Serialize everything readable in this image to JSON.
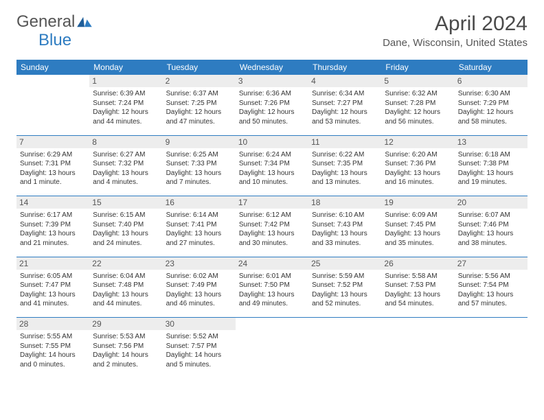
{
  "logo": {
    "word1": "General",
    "word2": "Blue"
  },
  "title": "April 2024",
  "location": "Dane, Wisconsin, United States",
  "colors": {
    "accent": "#2e7cc1",
    "daynum_bg": "#ededed",
    "text": "#333333",
    "title_text": "#4a4a4a",
    "bg": "#ffffff"
  },
  "days_of_week": [
    "Sunday",
    "Monday",
    "Tuesday",
    "Wednesday",
    "Thursday",
    "Friday",
    "Saturday"
  ],
  "weeks": [
    [
      {
        "n": "",
        "empty": true
      },
      {
        "n": "1",
        "sr": "6:39 AM",
        "ss": "7:24 PM",
        "dl": "12 hours and 44 minutes."
      },
      {
        "n": "2",
        "sr": "6:37 AM",
        "ss": "7:25 PM",
        "dl": "12 hours and 47 minutes."
      },
      {
        "n": "3",
        "sr": "6:36 AM",
        "ss": "7:26 PM",
        "dl": "12 hours and 50 minutes."
      },
      {
        "n": "4",
        "sr": "6:34 AM",
        "ss": "7:27 PM",
        "dl": "12 hours and 53 minutes."
      },
      {
        "n": "5",
        "sr": "6:32 AM",
        "ss": "7:28 PM",
        "dl": "12 hours and 56 minutes."
      },
      {
        "n": "6",
        "sr": "6:30 AM",
        "ss": "7:29 PM",
        "dl": "12 hours and 58 minutes."
      }
    ],
    [
      {
        "n": "7",
        "sr": "6:29 AM",
        "ss": "7:31 PM",
        "dl": "13 hours and 1 minute."
      },
      {
        "n": "8",
        "sr": "6:27 AM",
        "ss": "7:32 PM",
        "dl": "13 hours and 4 minutes."
      },
      {
        "n": "9",
        "sr": "6:25 AM",
        "ss": "7:33 PM",
        "dl": "13 hours and 7 minutes."
      },
      {
        "n": "10",
        "sr": "6:24 AM",
        "ss": "7:34 PM",
        "dl": "13 hours and 10 minutes."
      },
      {
        "n": "11",
        "sr": "6:22 AM",
        "ss": "7:35 PM",
        "dl": "13 hours and 13 minutes."
      },
      {
        "n": "12",
        "sr": "6:20 AM",
        "ss": "7:36 PM",
        "dl": "13 hours and 16 minutes."
      },
      {
        "n": "13",
        "sr": "6:18 AM",
        "ss": "7:38 PM",
        "dl": "13 hours and 19 minutes."
      }
    ],
    [
      {
        "n": "14",
        "sr": "6:17 AM",
        "ss": "7:39 PM",
        "dl": "13 hours and 21 minutes."
      },
      {
        "n": "15",
        "sr": "6:15 AM",
        "ss": "7:40 PM",
        "dl": "13 hours and 24 minutes."
      },
      {
        "n": "16",
        "sr": "6:14 AM",
        "ss": "7:41 PM",
        "dl": "13 hours and 27 minutes."
      },
      {
        "n": "17",
        "sr": "6:12 AM",
        "ss": "7:42 PM",
        "dl": "13 hours and 30 minutes."
      },
      {
        "n": "18",
        "sr": "6:10 AM",
        "ss": "7:43 PM",
        "dl": "13 hours and 33 minutes."
      },
      {
        "n": "19",
        "sr": "6:09 AM",
        "ss": "7:45 PM",
        "dl": "13 hours and 35 minutes."
      },
      {
        "n": "20",
        "sr": "6:07 AM",
        "ss": "7:46 PM",
        "dl": "13 hours and 38 minutes."
      }
    ],
    [
      {
        "n": "21",
        "sr": "6:05 AM",
        "ss": "7:47 PM",
        "dl": "13 hours and 41 minutes."
      },
      {
        "n": "22",
        "sr": "6:04 AM",
        "ss": "7:48 PM",
        "dl": "13 hours and 44 minutes."
      },
      {
        "n": "23",
        "sr": "6:02 AM",
        "ss": "7:49 PM",
        "dl": "13 hours and 46 minutes."
      },
      {
        "n": "24",
        "sr": "6:01 AM",
        "ss": "7:50 PM",
        "dl": "13 hours and 49 minutes."
      },
      {
        "n": "25",
        "sr": "5:59 AM",
        "ss": "7:52 PM",
        "dl": "13 hours and 52 minutes."
      },
      {
        "n": "26",
        "sr": "5:58 AM",
        "ss": "7:53 PM",
        "dl": "13 hours and 54 minutes."
      },
      {
        "n": "27",
        "sr": "5:56 AM",
        "ss": "7:54 PM",
        "dl": "13 hours and 57 minutes."
      }
    ],
    [
      {
        "n": "28",
        "sr": "5:55 AM",
        "ss": "7:55 PM",
        "dl": "14 hours and 0 minutes."
      },
      {
        "n": "29",
        "sr": "5:53 AM",
        "ss": "7:56 PM",
        "dl": "14 hours and 2 minutes."
      },
      {
        "n": "30",
        "sr": "5:52 AM",
        "ss": "7:57 PM",
        "dl": "14 hours and 5 minutes."
      },
      {
        "n": "",
        "empty": true
      },
      {
        "n": "",
        "empty": true
      },
      {
        "n": "",
        "empty": true
      },
      {
        "n": "",
        "empty": true
      }
    ]
  ],
  "labels": {
    "sunrise": "Sunrise: ",
    "sunset": "Sunset: ",
    "daylight": "Daylight: "
  }
}
